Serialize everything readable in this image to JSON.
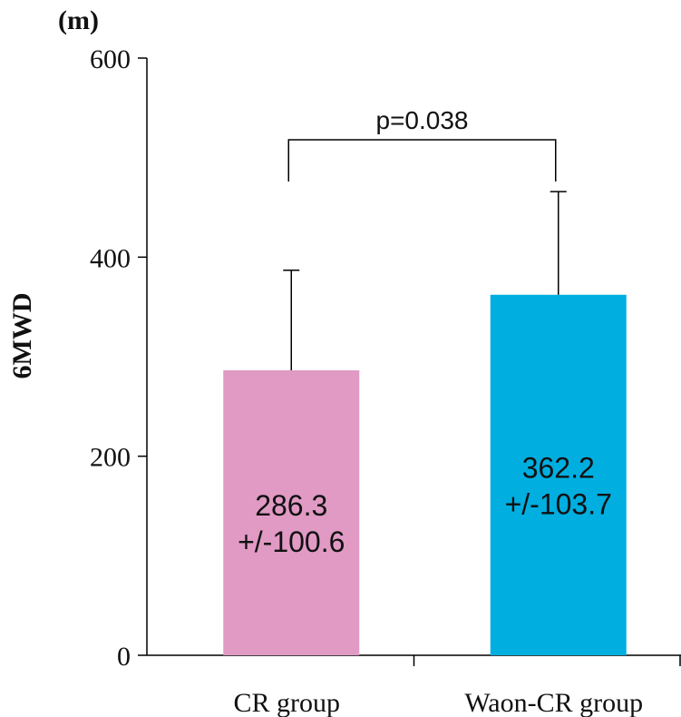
{
  "chart_data": {
    "type": "bar",
    "title": "",
    "unit_label": "(m)",
    "ylabel": "6MWD",
    "xlabel": "",
    "ylim": [
      0,
      600
    ],
    "yticks": [
      0,
      200,
      400,
      600
    ],
    "ytick_labels": [
      "0",
      "200",
      "400",
      "600"
    ],
    "categories": [
      "CR group",
      "Waon-CR group"
    ],
    "values": [
      286.3,
      362.2
    ],
    "errors": [
      100.6,
      103.7
    ],
    "bar_labels": [
      {
        "mean": "286.3",
        "sd": "+/-100.6"
      },
      {
        "mean": "362.2",
        "sd": "+/-103.7"
      }
    ],
    "colors": [
      "#e09ac4",
      "#00aee0"
    ],
    "significance": {
      "label": "p=0.038",
      "between": [
        0,
        1
      ]
    },
    "grid": false,
    "legend": "none"
  }
}
